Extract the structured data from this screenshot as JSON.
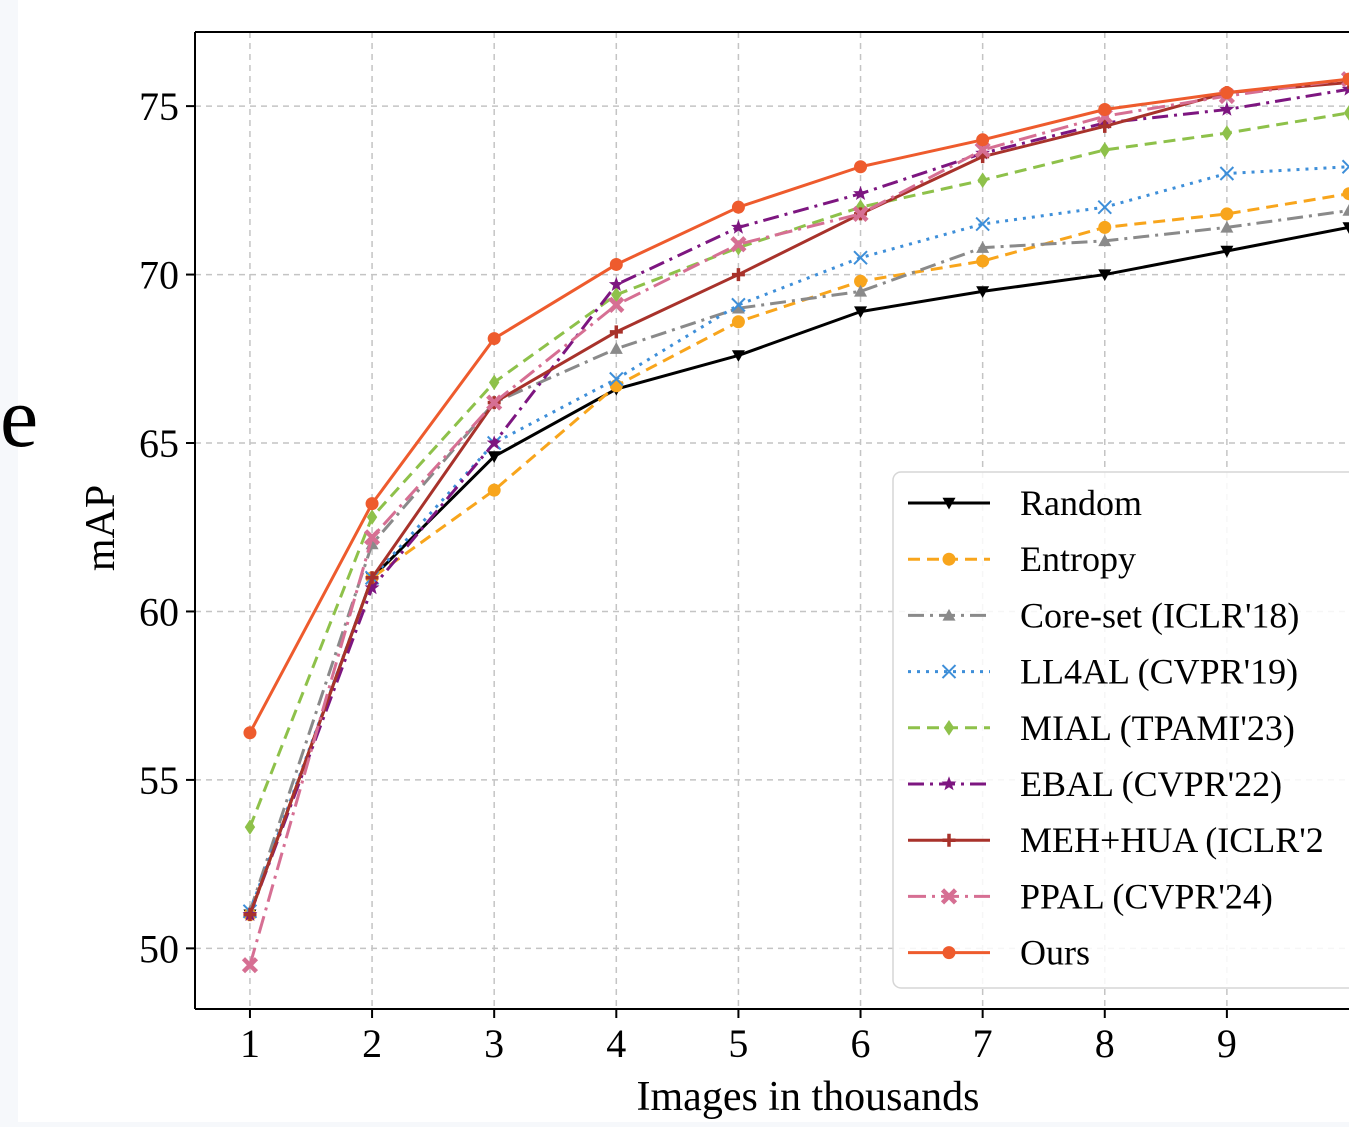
{
  "chart_data": {
    "type": "line",
    "xlabel": "Images in thousands",
    "ylabel": "mAP",
    "x": [
      1,
      2,
      3,
      4,
      5,
      6,
      7,
      8,
      9,
      10
    ],
    "xticks": [
      "1",
      "2",
      "3",
      "4",
      "5",
      "6",
      "7",
      "8",
      "9"
    ],
    "yticks": [
      "50",
      "55",
      "60",
      "65",
      "70",
      "75"
    ],
    "xlim": [
      0.55,
      10.0
    ],
    "ylim": [
      48.2,
      77.2
    ],
    "grid": true,
    "legend_position": "bottom-right",
    "side_fragment_text": "e",
    "series": [
      {
        "name": "Random",
        "color": "#000000",
        "dash": "",
        "marker": "tri-down",
        "values": [
          51.0,
          61.0,
          64.6,
          66.6,
          67.6,
          68.9,
          69.5,
          70.0,
          70.7,
          71.4
        ]
      },
      {
        "name": "Entropy",
        "color": "#f8a51c",
        "dash": "12 7",
        "marker": "circle",
        "values": [
          51.0,
          61.0,
          63.6,
          66.7,
          68.6,
          69.8,
          70.4,
          71.4,
          71.8,
          72.4
        ]
      },
      {
        "name": "Core-set (ICLR'18)",
        "color": "#8a8a8a",
        "dash": "16 6 3 6",
        "marker": "tri-up",
        "values": [
          51.1,
          62.0,
          66.2,
          67.8,
          69.0,
          69.5,
          70.8,
          71.0,
          71.4,
          71.9
        ]
      },
      {
        "name": "LL4AL (CVPR'19)",
        "color": "#3e8fd9",
        "dash": "3 6",
        "marker": "x",
        "values": [
          51.1,
          61.0,
          65.0,
          66.9,
          69.1,
          70.5,
          71.5,
          72.0,
          73.0,
          73.2
        ]
      },
      {
        "name": "MIAL (TPAMI'23)",
        "color": "#8ec14a",
        "dash": "12 7",
        "marker": "diamond",
        "values": [
          53.6,
          62.8,
          66.8,
          69.4,
          70.8,
          72.0,
          72.8,
          73.7,
          74.2,
          74.8
        ]
      },
      {
        "name": "EBAL (CVPR'22)",
        "color": "#7d1680",
        "dash": "16 6 3 6",
        "marker": "star",
        "values": [
          51.0,
          60.7,
          65.0,
          69.7,
          71.4,
          72.4,
          73.6,
          74.5,
          74.9,
          75.5
        ]
      },
      {
        "name": "MEH+HUA (ICLR'2",
        "color": "#a8322b",
        "dash": "",
        "marker": "plus",
        "values": [
          51.0,
          61.0,
          66.2,
          68.3,
          70.0,
          71.8,
          73.5,
          74.4,
          75.4,
          75.7
        ]
      },
      {
        "name": "PPAL (CVPR'24)",
        "color": "#d66f93",
        "dash": "18 6 3 6",
        "marker": "cross",
        "values": [
          49.5,
          62.2,
          66.2,
          69.1,
          70.9,
          71.8,
          73.7,
          74.7,
          75.3,
          75.8
        ]
      },
      {
        "name": "Ours",
        "color": "#ee5b2d",
        "dash": "",
        "marker": "circle",
        "values": [
          56.4,
          63.2,
          68.1,
          70.3,
          72.0,
          73.2,
          74.0,
          74.9,
          75.4,
          75.8
        ]
      }
    ]
  }
}
